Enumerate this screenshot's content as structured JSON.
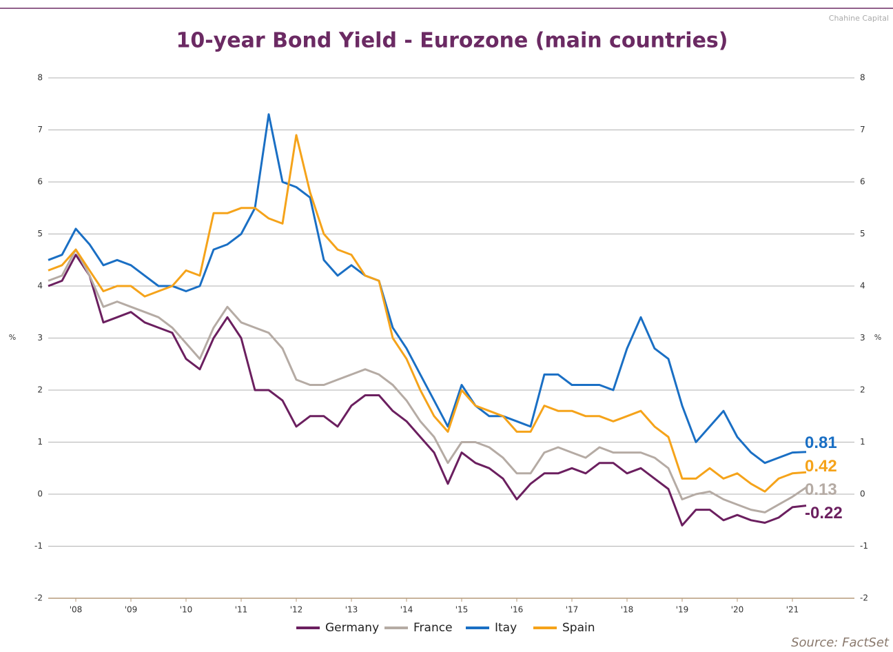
{
  "chart_data": {
    "type": "line",
    "title": "10-year Bond Yield - Eurozone (main countries)",
    "watermark": "Chahine Capital",
    "source": "Source: FactSet",
    "ylabel": "%",
    "y2label": "%",
    "xlim": [
      2007.5,
      2022.125
    ],
    "ylim": [
      -2,
      8
    ],
    "y2lim": [
      -2,
      8
    ],
    "yticks": [
      -2,
      -1,
      0,
      1,
      2,
      3,
      4,
      5,
      6,
      7,
      8
    ],
    "y2ticks": [
      -2,
      -1,
      0,
      1,
      2,
      3,
      4,
      5,
      6,
      7,
      8
    ],
    "xticks": [
      {
        "value": 2008,
        "label": "'08"
      },
      {
        "value": 2009,
        "label": "'09"
      },
      {
        "value": 2010,
        "label": "'10"
      },
      {
        "value": 2011,
        "label": "'11"
      },
      {
        "value": 2012,
        "label": "'12"
      },
      {
        "value": 2013,
        "label": "'13"
      },
      {
        "value": 2014,
        "label": "'14"
      },
      {
        "value": 2015,
        "label": "'15"
      },
      {
        "value": 2016,
        "label": "'16"
      },
      {
        "value": 2017,
        "label": "'17"
      },
      {
        "value": 2018,
        "label": "'18"
      },
      {
        "value": 2019,
        "label": "'19"
      },
      {
        "value": 2020,
        "label": "'20"
      },
      {
        "value": 2021,
        "label": "'21"
      }
    ],
    "grid": true,
    "legend": "bottom",
    "x": [
      2007.5,
      2007.75,
      2008,
      2008.25,
      2008.5,
      2008.75,
      2009,
      2009.25,
      2009.5,
      2009.75,
      2010,
      2010.25,
      2010.5,
      2010.75,
      2011,
      2011.25,
      2011.5,
      2011.75,
      2012,
      2012.25,
      2012.5,
      2012.75,
      2013,
      2013.25,
      2013.5,
      2013.75,
      2014,
      2014.25,
      2014.5,
      2014.75,
      2015,
      2015.25,
      2015.5,
      2015.75,
      2016,
      2016.25,
      2016.5,
      2016.75,
      2017,
      2017.25,
      2017.5,
      2017.75,
      2018,
      2018.25,
      2018.5,
      2018.75,
      2019,
      2019.25,
      2019.5,
      2019.75,
      2020,
      2020.25,
      2020.5,
      2020.75,
      2021,
      2021.25
    ],
    "series": [
      {
        "name": "Germany",
        "color": "#6b1f5f",
        "values": [
          4.0,
          4.1,
          4.6,
          4.2,
          3.3,
          3.4,
          3.5,
          3.3,
          3.2,
          3.1,
          2.6,
          2.4,
          3.0,
          3.4,
          3.0,
          2.0,
          2.0,
          1.8,
          1.3,
          1.5,
          1.5,
          1.3,
          1.7,
          1.9,
          1.9,
          1.6,
          1.4,
          1.1,
          0.8,
          0.2,
          0.8,
          0.6,
          0.5,
          0.3,
          -0.1,
          0.2,
          0.4,
          0.4,
          0.5,
          0.4,
          0.6,
          0.6,
          0.4,
          0.5,
          0.3,
          0.1,
          -0.6,
          -0.3,
          -0.3,
          -0.5,
          -0.4,
          -0.5,
          -0.55,
          -0.45,
          -0.25,
          -0.22
        ]
      },
      {
        "name": "France",
        "color": "#b5aba4",
        "values": [
          4.1,
          4.2,
          4.7,
          4.2,
          3.6,
          3.7,
          3.6,
          3.5,
          3.4,
          3.2,
          2.9,
          2.6,
          3.2,
          3.6,
          3.3,
          3.2,
          3.1,
          2.8,
          2.2,
          2.1,
          2.1,
          2.2,
          2.3,
          2.4,
          2.3,
          2.1,
          1.8,
          1.4,
          1.1,
          0.6,
          1.0,
          1.0,
          0.9,
          0.7,
          0.4,
          0.4,
          0.8,
          0.9,
          0.8,
          0.7,
          0.9,
          0.8,
          0.8,
          0.8,
          0.7,
          0.5,
          -0.1,
          0.0,
          0.05,
          -0.1,
          -0.2,
          -0.3,
          -0.35,
          -0.2,
          -0.05,
          0.13
        ]
      },
      {
        "name": "Itay",
        "color": "#1a6fc4",
        "values": [
          4.5,
          4.6,
          5.1,
          4.8,
          4.4,
          4.5,
          4.4,
          4.2,
          4.0,
          4.0,
          3.9,
          4.0,
          4.7,
          4.8,
          5.0,
          5.5,
          7.3,
          6.0,
          5.9,
          5.7,
          4.5,
          4.2,
          4.4,
          4.2,
          4.1,
          3.2,
          2.8,
          2.3,
          1.8,
          1.3,
          2.1,
          1.7,
          1.5,
          1.5,
          1.4,
          1.3,
          2.3,
          2.3,
          2.1,
          2.1,
          2.1,
          2.0,
          2.8,
          3.4,
          2.8,
          2.6,
          1.7,
          1.0,
          1.3,
          1.6,
          1.1,
          0.8,
          0.6,
          0.7,
          0.8,
          0.81
        ]
      },
      {
        "name": "Spain",
        "color": "#f5a31a",
        "values": [
          4.3,
          4.4,
          4.7,
          4.3,
          3.9,
          4.0,
          4.0,
          3.8,
          3.9,
          4.0,
          4.3,
          4.2,
          5.4,
          5.4,
          5.5,
          5.5,
          5.3,
          5.2,
          6.9,
          5.8,
          5.0,
          4.7,
          4.6,
          4.2,
          4.1,
          3.0,
          2.6,
          2.0,
          1.5,
          1.2,
          2.0,
          1.7,
          1.6,
          1.5,
          1.2,
          1.2,
          1.7,
          1.6,
          1.6,
          1.5,
          1.5,
          1.4,
          1.5,
          1.6,
          1.3,
          1.1,
          0.3,
          0.3,
          0.5,
          0.3,
          0.4,
          0.2,
          0.05,
          0.3,
          0.4,
          0.42
        ]
      }
    ],
    "annotations": [
      {
        "text": "0.81",
        "value": 0.81,
        "color": "#1a6fc4"
      },
      {
        "text": "0.42",
        "value": 0.42,
        "color": "#f5a31a"
      },
      {
        "text": "0.13",
        "value": 0.13,
        "color": "#b5aba4"
      },
      {
        "text": "-0.22",
        "value": -0.22,
        "color": "#6b1f5f"
      }
    ]
  }
}
